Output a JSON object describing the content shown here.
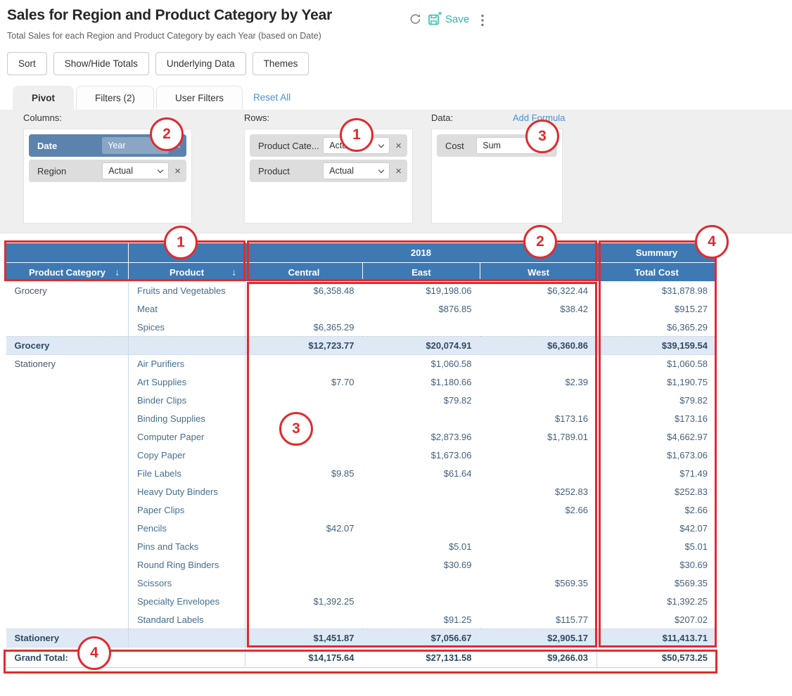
{
  "page": {
    "title": "Sales for Region and Product Category by Year",
    "subtitle": "Total Sales for each Region and Product Category by each Year (based on Date)"
  },
  "actions": {
    "save_label": "Save"
  },
  "toolbar": {
    "buttons": [
      "Sort",
      "Show/Hide Totals",
      "Underlying Data",
      "Themes"
    ]
  },
  "tabs": {
    "pivot": "Pivot",
    "filters": "Filters (2)",
    "user_filters": "User Filters",
    "reset_all": "Reset All"
  },
  "config": {
    "close_glyph": "×",
    "columns": {
      "label": "Columns:",
      "chips": [
        {
          "field": "Date",
          "value": "Year"
        },
        {
          "field": "Region",
          "value": "Actual"
        }
      ]
    },
    "rows": {
      "label": "Rows:",
      "chips": [
        {
          "field": "Product Cate...",
          "value": "Actual"
        },
        {
          "field": "Product",
          "value": "Actual"
        }
      ]
    },
    "data": {
      "label": "Data:",
      "add_formula": "Add Formula",
      "chips": [
        {
          "field": "Cost",
          "value": "Sum"
        }
      ]
    }
  },
  "table": {
    "group_headers": {
      "year": "2018",
      "summary": "Summary"
    },
    "columns": [
      "Product Category",
      "Product",
      "Central",
      "East",
      "West",
      "Total Cost"
    ],
    "sort_glyph": "↓",
    "rows": [
      {
        "type": "data",
        "category": "Grocery",
        "product": "Fruits and Vegetables",
        "central": "$6,358.48",
        "east": "$19,198.06",
        "west": "$6,322.44",
        "total": "$31,878.98"
      },
      {
        "type": "data",
        "category": "",
        "product": "Meat",
        "central": "",
        "east": "$876.85",
        "west": "$38.42",
        "total": "$915.27"
      },
      {
        "type": "data",
        "category": "",
        "product": "Spices",
        "central": "$6,365.29",
        "east": "",
        "west": "",
        "total": "$6,365.29"
      },
      {
        "type": "subtotal",
        "label": "Grocery",
        "central": "$12,723.77",
        "east": "$20,074.91",
        "west": "$6,360.86",
        "total": "$39,159.54"
      },
      {
        "type": "data",
        "category": "Stationery",
        "product": "Air Purifiers",
        "central": "",
        "east": "$1,060.58",
        "west": "",
        "total": "$1,060.58"
      },
      {
        "type": "data",
        "category": "",
        "product": "Art Supplies",
        "central": "$7.70",
        "east": "$1,180.66",
        "west": "$2.39",
        "total": "$1,190.75"
      },
      {
        "type": "data",
        "category": "",
        "product": "Binder Clips",
        "central": "",
        "east": "$79.82",
        "west": "",
        "total": "$79.82"
      },
      {
        "type": "data",
        "category": "",
        "product": "Binding Supplies",
        "central": "",
        "east": "",
        "west": "$173.16",
        "total": "$173.16"
      },
      {
        "type": "data",
        "category": "",
        "product": "Computer Paper",
        "central": "",
        "east": "$2,873.96",
        "west": "$1,789.01",
        "total": "$4,662.97"
      },
      {
        "type": "data",
        "category": "",
        "product": "Copy Paper",
        "central": "",
        "east": "$1,673.06",
        "west": "",
        "total": "$1,673.06"
      },
      {
        "type": "data",
        "category": "",
        "product": "File Labels",
        "central": "$9.85",
        "east": "$61.64",
        "west": "",
        "total": "$71.49"
      },
      {
        "type": "data",
        "category": "",
        "product": "Heavy Duty Binders",
        "central": "",
        "east": "",
        "west": "$252.83",
        "total": "$252.83"
      },
      {
        "type": "data",
        "category": "",
        "product": "Paper Clips",
        "central": "",
        "east": "",
        "west": "$2.66",
        "total": "$2.66"
      },
      {
        "type": "data",
        "category": "",
        "product": "Pencils",
        "central": "$42.07",
        "east": "",
        "west": "",
        "total": "$42.07"
      },
      {
        "type": "data",
        "category": "",
        "product": "Pins and Tacks",
        "central": "",
        "east": "$5.01",
        "west": "",
        "total": "$5.01"
      },
      {
        "type": "data",
        "category": "",
        "product": "Round Ring Binders",
        "central": "",
        "east": "$30.69",
        "west": "",
        "total": "$30.69"
      },
      {
        "type": "data",
        "category": "",
        "product": "Scissors",
        "central": "",
        "east": "",
        "west": "$569.35",
        "total": "$569.35"
      },
      {
        "type": "data",
        "category": "",
        "product": "Specialty Envelopes",
        "central": "$1,392.25",
        "east": "",
        "west": "",
        "total": "$1,392.25"
      },
      {
        "type": "data",
        "category": "",
        "product": "Standard Labels",
        "central": "",
        "east": "$91.25",
        "west": "$115.77",
        "total": "$207.02"
      },
      {
        "type": "subtotal",
        "label": "Stationery",
        "central": "$1,451.87",
        "east": "$7,056.67",
        "west": "$2,905.17",
        "total": "$11,413.71"
      },
      {
        "type": "grandtotal",
        "label": "Grand Total:",
        "central": "$14,175.64",
        "east": "$27,131.58",
        "west": "$9,266.03",
        "total": "$50,573.25"
      }
    ]
  },
  "annotations": {
    "circles": [
      "2",
      "1",
      "3",
      "1",
      "2",
      "4",
      "3",
      "4"
    ]
  },
  "colors": {
    "header_blue": "#3e79b4",
    "chip_selected_blue": "#5b83ae",
    "chip_selected_inner_blue": "#8ba6c4",
    "subtotal_row_bg": "#dfe9f5",
    "accent_teal": "#2bbcab",
    "link_blue": "#4a90d9",
    "annotation_red": "#e12b2e"
  }
}
